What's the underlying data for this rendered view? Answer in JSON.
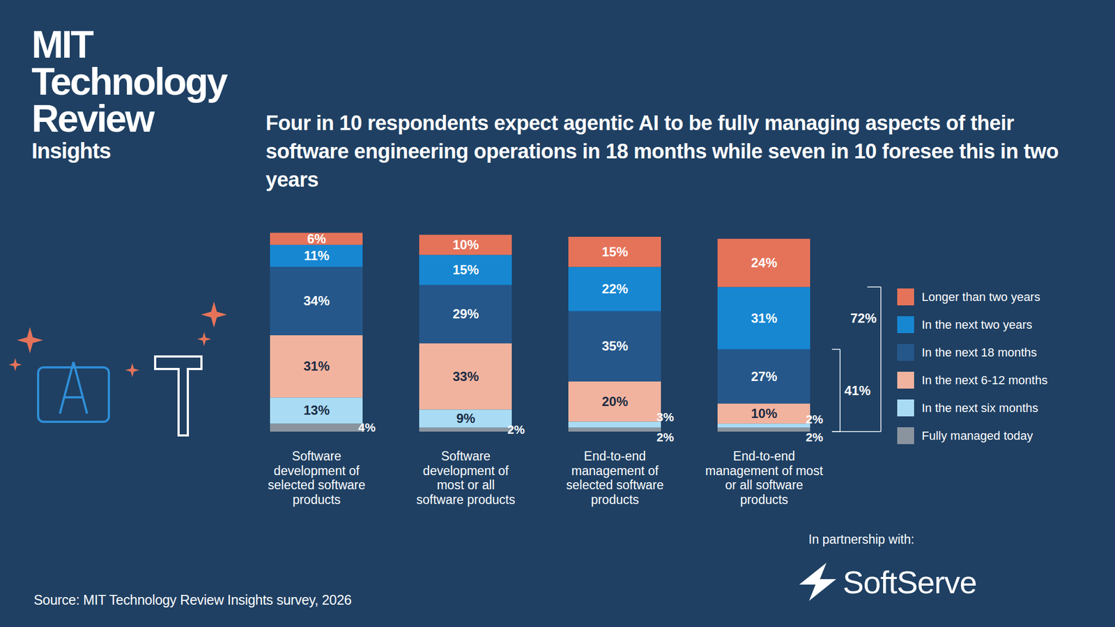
{
  "chart_data": {
    "type": "bar",
    "stacked": true,
    "data_labels": true,
    "tick_labels": false,
    "legend": "right",
    "title": "Four in 10 respondents expect agentic AI to be fully managing aspects of their software engineering operations in 18 months while seven in 10 foresee this in two years",
    "categories": [
      "Software development of selected software products",
      "Software development of most or all software products",
      "End-to-end management of selected software products",
      "End-to-end management of most or all software products"
    ],
    "ylim": [
      0,
      100
    ],
    "series": [
      {
        "name": "Fully managed today",
        "color": "#8a949e",
        "values": [
          4,
          2,
          2,
          2
        ],
        "value_labels": [
          "4%",
          "2%",
          "2%",
          "2%"
        ]
      },
      {
        "name": "In the next six months",
        "color": "#a9dcf4",
        "values": [
          13,
          9,
          3,
          2
        ],
        "value_labels": [
          "13%",
          "9%",
          "3%",
          "2%"
        ]
      },
      {
        "name": "In the next 6-12 months",
        "color": "#f2b39e",
        "values": [
          31,
          33,
          20,
          10
        ],
        "value_labels": [
          "31%",
          "33%",
          "20%",
          "10%"
        ]
      },
      {
        "name": "In the next 18 months",
        "color": "#25578a",
        "values": [
          34,
          29,
          35,
          27
        ],
        "value_labels": [
          "34%",
          "29%",
          "35%",
          "27%"
        ]
      },
      {
        "name": "In the next two years",
        "color": "#1787d2",
        "values": [
          11,
          15,
          22,
          31
        ],
        "value_labels": [
          "11%",
          "15%",
          "22%",
          "31%"
        ]
      },
      {
        "name": "Longer than two years",
        "color": "#e5735a",
        "values": [
          6,
          10,
          15,
          24
        ],
        "value_labels": [
          "6%",
          "10%",
          "15%",
          "24%"
        ]
      }
    ],
    "annotations": [
      {
        "text": "72%",
        "value": 72,
        "category": "End-to-end management of most or all software products"
      },
      {
        "text": "41%",
        "value": 41,
        "category": "End-to-end management of most or all software products"
      }
    ],
    "logo": [
      "MIT",
      "Technology",
      "Review",
      "Insights"
    ],
    "source": "Source: MIT Technology Review Insights survey, 2026",
    "partner_label": "In partnership with:",
    "partner": "SoftServe"
  }
}
